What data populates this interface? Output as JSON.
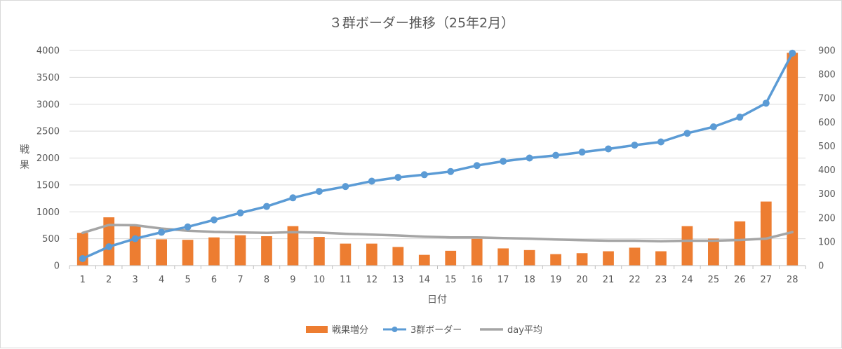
{
  "chart_data": {
    "type": "bar",
    "title": "３群ボーダー推移（25年2月）",
    "xlabel": "日付",
    "ylabel": "戦果",
    "categories": [
      "1",
      "2",
      "3",
      "4",
      "5",
      "6",
      "7",
      "8",
      "9",
      "10",
      "11",
      "12",
      "13",
      "14",
      "15",
      "16",
      "17",
      "18",
      "19",
      "20",
      "21",
      "22",
      "23",
      "24",
      "25",
      "26",
      "27",
      "28"
    ],
    "ylim": [
      0,
      4000
    ],
    "y_ticks": [
      0,
      500,
      1000,
      1500,
      2000,
      2500,
      3000,
      3500,
      4000
    ],
    "y2lim": [
      0,
      900
    ],
    "y2_ticks": [
      0,
      100,
      200,
      300,
      400,
      500,
      600,
      700,
      800,
      900
    ],
    "grid": true,
    "legend_position": "bottom",
    "series": [
      {
        "name": "戦果増分",
        "type": "bar",
        "axis": "secondary",
        "color": "#ed7d31",
        "values": [
          137,
          202,
          167,
          110,
          108,
          118,
          127,
          123,
          165,
          120,
          92,
          92,
          78,
          45,
          62,
          112,
          72,
          65,
          48,
          52,
          60,
          75,
          60,
          165,
          113,
          185,
          268,
          890
        ]
      },
      {
        "name": "3群ボーダー",
        "type": "line",
        "axis": "primary",
        "color": "#5b9bd5",
        "marker": "circle",
        "values": [
          130,
          350,
          500,
          620,
          720,
          850,
          980,
          1100,
          1260,
          1380,
          1470,
          1570,
          1640,
          1690,
          1750,
          1860,
          1940,
          2000,
          2050,
          2110,
          2170,
          2240,
          2300,
          2460,
          2580,
          2760,
          3020,
          3950
        ]
      },
      {
        "name": "day平均",
        "type": "line",
        "axis": "secondary",
        "color": "#a5a5a5",
        "values": [
          137,
          170,
          169,
          155,
          146,
          141,
          139,
          137,
          140,
          138,
          133,
          130,
          126,
          121,
          118,
          118,
          115,
          113,
          109,
          106,
          104,
          104,
          102,
          104,
          104,
          107,
          113,
          140
        ]
      }
    ]
  }
}
